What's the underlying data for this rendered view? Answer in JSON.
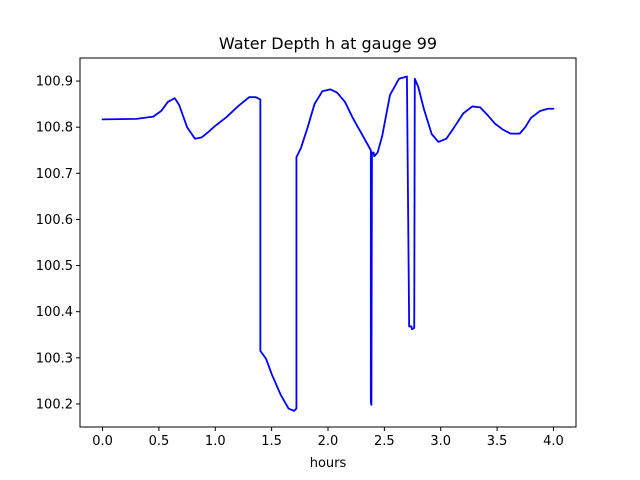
{
  "chart_data": {
    "type": "line",
    "title": "Water Depth h at gauge 99",
    "xlabel": "hours",
    "ylabel": "",
    "xlim": [
      -0.2,
      4.2
    ],
    "ylim": [
      100.15,
      100.95
    ],
    "x_ticks": [
      0.0,
      0.5,
      1.0,
      1.5,
      2.0,
      2.5,
      3.0,
      3.5,
      4.0
    ],
    "x_tick_labels": [
      "0.0",
      "0.5",
      "1.0",
      "1.5",
      "2.0",
      "2.5",
      "3.0",
      "3.5",
      "4.0"
    ],
    "y_ticks": [
      100.2,
      100.3,
      100.4,
      100.5,
      100.6,
      100.7,
      100.8,
      100.9
    ],
    "y_tick_labels": [
      "100.2",
      "100.3",
      "100.4",
      "100.5",
      "100.6",
      "100.7",
      "100.8",
      "100.9"
    ],
    "grid": false,
    "series": [
      {
        "color": "#0000ff",
        "x": [
          0.0,
          0.3,
          0.45,
          0.52,
          0.58,
          0.64,
          0.68,
          0.75,
          0.82,
          0.88,
          0.94,
          1.0,
          1.1,
          1.2,
          1.3,
          1.36,
          1.4,
          1.4,
          1.45,
          1.5,
          1.58,
          1.65,
          1.7,
          1.72,
          1.72,
          1.76,
          1.82,
          1.88,
          1.95,
          2.02,
          2.08,
          2.15,
          2.22,
          2.3,
          2.38,
          2.38,
          2.385,
          2.39,
          2.405,
          2.41,
          2.44,
          2.48,
          2.55,
          2.63,
          2.7,
          2.72,
          2.74,
          2.745,
          2.765,
          2.77,
          2.8,
          2.85,
          2.92,
          2.98,
          3.05,
          3.12,
          3.2,
          3.28,
          3.35,
          3.42,
          3.48,
          3.55,
          3.62,
          3.7,
          3.75,
          3.8,
          3.88,
          3.95,
          4.0
        ],
        "y": [
          100.817,
          100.818,
          100.823,
          100.835,
          100.855,
          100.863,
          100.848,
          100.8,
          100.775,
          100.778,
          100.79,
          100.803,
          100.822,
          100.845,
          100.865,
          100.865,
          100.86,
          100.315,
          100.298,
          100.265,
          100.22,
          100.19,
          100.185,
          100.19,
          100.735,
          100.755,
          100.8,
          100.85,
          100.878,
          100.882,
          100.875,
          100.855,
          100.82,
          100.785,
          100.75,
          100.205,
          100.198,
          100.745,
          100.745,
          100.737,
          100.745,
          100.78,
          100.87,
          100.905,
          100.91,
          100.368,
          100.368,
          100.362,
          100.365,
          100.905,
          100.888,
          100.84,
          100.785,
          100.768,
          100.775,
          100.8,
          100.83,
          100.845,
          100.843,
          100.825,
          100.808,
          100.795,
          100.786,
          100.786,
          100.8,
          100.82,
          100.835,
          100.84,
          100.84
        ]
      }
    ]
  }
}
